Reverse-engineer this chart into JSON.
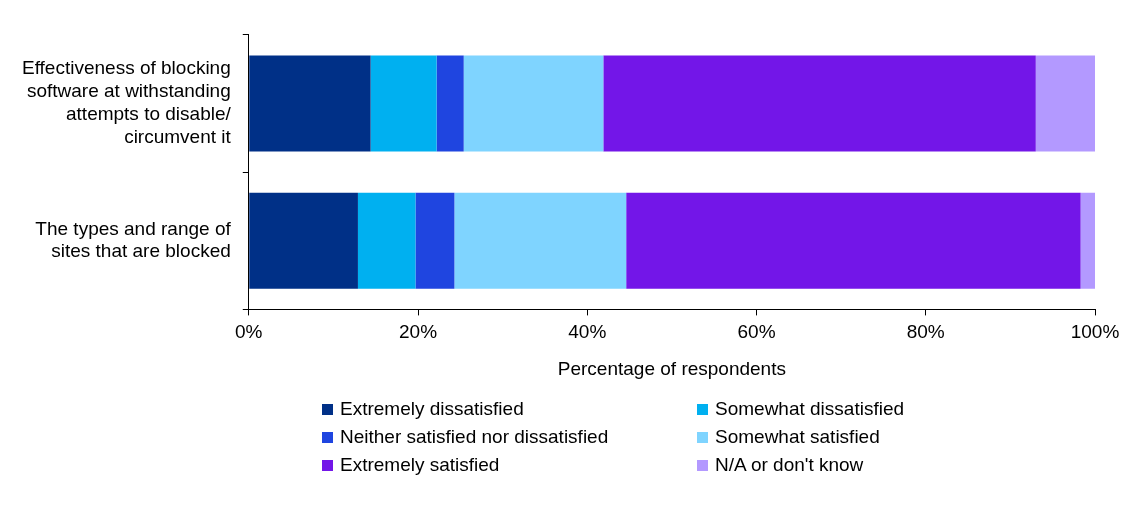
{
  "chart_data": {
    "type": "bar",
    "orientation": "horizontal",
    "stacked": true,
    "xlabel": "Percentage of respondents",
    "categories": [
      "Effectiveness of blocking software at withstanding attempts to disable/ circumvent it",
      "The types and range of sites that are blocked"
    ],
    "series": [
      {
        "name": "Extremely dissatisfied",
        "color": "#003087",
        "values": [
          14.4,
          12.9
        ]
      },
      {
        "name": "Somewhat dissatisfied",
        "color": "#00b0f0",
        "values": [
          7.8,
          6.8
        ]
      },
      {
        "name": "Neither satisfied nor dissatisfied",
        "color": "#1f45e0",
        "values": [
          3.2,
          4.6
        ]
      },
      {
        "name": "Somewhat satisfied",
        "color": "#7fd4ff",
        "values": [
          16.5,
          20.3
        ]
      },
      {
        "name": "Extremely satisfied",
        "color": "#7316e8",
        "values": [
          51.1,
          53.7
        ]
      },
      {
        "name": "N/A or don't know",
        "color": "#b399ff",
        "values": [
          7.0,
          1.7
        ]
      }
    ],
    "xlim": [
      0,
      100
    ],
    "xticks": [
      {
        "value": 0,
        "label": "0%"
      },
      {
        "value": 20,
        "label": "20%"
      },
      {
        "value": 40,
        "label": "40%"
      },
      {
        "value": 60,
        "label": "60%"
      },
      {
        "value": 80,
        "label": "80%"
      },
      {
        "value": 100,
        "label": "100%"
      }
    ],
    "grid": false,
    "legend": "bottom"
  }
}
